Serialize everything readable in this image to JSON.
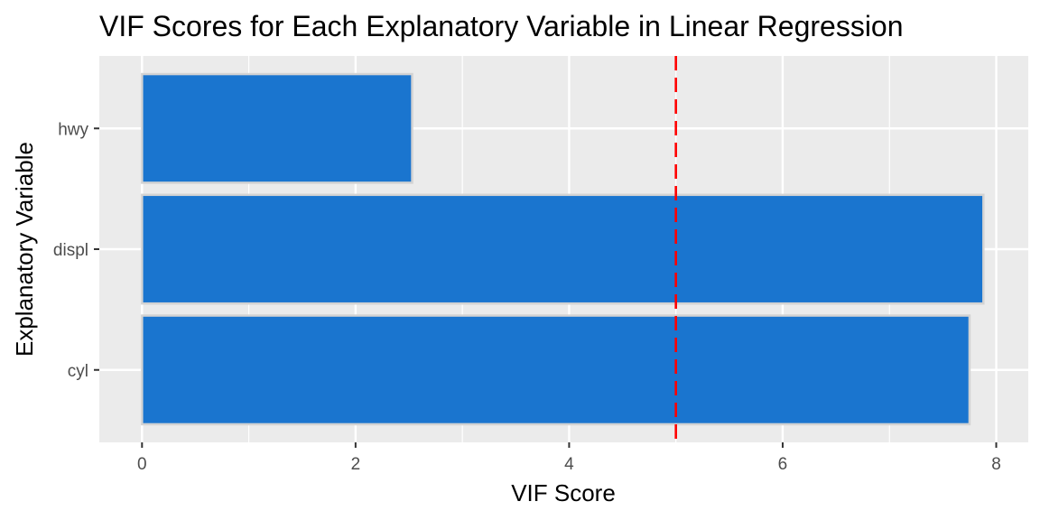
{
  "chart_data": {
    "type": "bar",
    "orientation": "horizontal",
    "title": "VIF Scores for Each Explanatory Variable in Linear Regression",
    "xlabel": "VIF Score",
    "ylabel": "Explanatory Variable",
    "categories": [
      "cyl",
      "displ",
      "hwy"
    ],
    "values": [
      7.75,
      7.88,
      2.53
    ],
    "xlim": [
      -0.4,
      8.3
    ],
    "x_ticks": [
      0,
      2,
      4,
      6,
      8
    ],
    "x_tick_labels": [
      "0",
      "2",
      "4",
      "6",
      "8"
    ],
    "reference_line": {
      "x": 5,
      "style": "dashed"
    },
    "grid": true,
    "legend": "none",
    "colors": {
      "bar_fill": "#1a75cf",
      "bar_outline": "#d3d3d3",
      "panel_background": "#ebebeb",
      "grid_line": "#ffffff",
      "reference_line": "#ff0000"
    }
  }
}
